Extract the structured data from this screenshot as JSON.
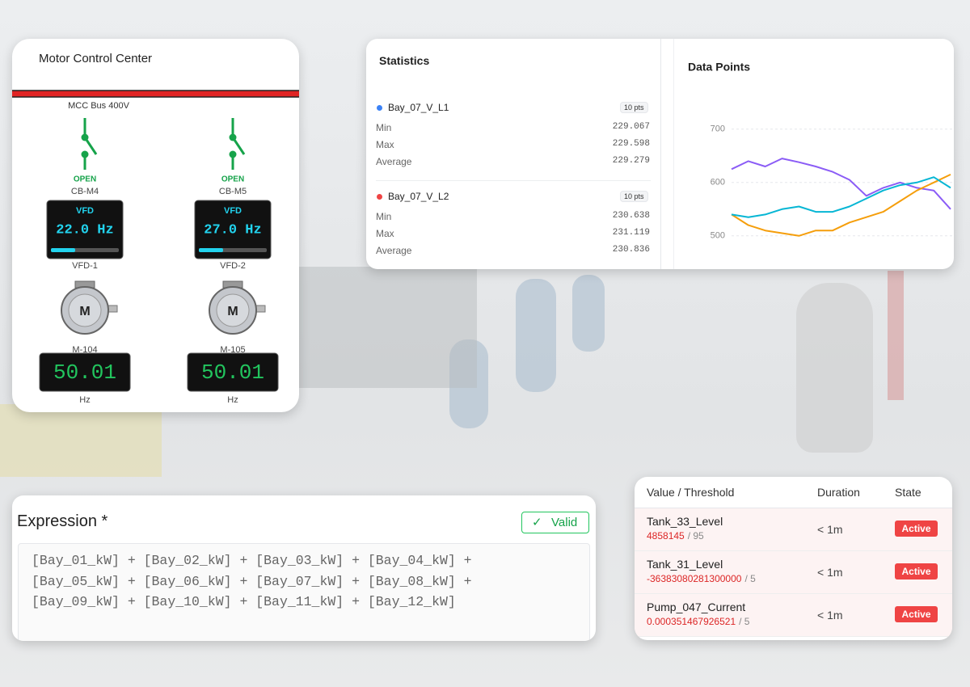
{
  "mcc": {
    "title": "Motor Control Center",
    "bus": "MCC Bus 400V",
    "feeders": [
      {
        "state": "OPEN",
        "breaker": "CB-M4",
        "vfd_label": "VFD",
        "vfd_frequency": "22.0 Hz",
        "vfd_name": "VFD-1",
        "motor_symbol": "M",
        "motor": "M-104",
        "reading": "50.01",
        "unit": "Hz"
      },
      {
        "state": "OPEN",
        "breaker": "CB-M5",
        "vfd_label": "VFD",
        "vfd_frequency": "27.0 Hz",
        "vfd_name": "VFD-2",
        "motor_symbol": "M",
        "motor": "M-105",
        "reading": "50.01",
        "unit": "Hz"
      }
    ]
  },
  "statistics": {
    "title": "Statistics",
    "series": [
      {
        "name": "Bay_07_V_L1",
        "color": "#3b82f6",
        "count": "10 pts",
        "rows": [
          {
            "label": "Min",
            "value": "229.067"
          },
          {
            "label": "Max",
            "value": "229.598"
          },
          {
            "label": "Average",
            "value": "229.279"
          }
        ]
      },
      {
        "name": "Bay_07_V_L2",
        "color": "#ef4444",
        "count": "10 pts",
        "rows": [
          {
            "label": "Min",
            "value": "230.638"
          },
          {
            "label": "Max",
            "value": "231.119"
          },
          {
            "label": "Average",
            "value": "230.836"
          }
        ]
      }
    ]
  },
  "data_points": {
    "type": "line",
    "title": "Data Points",
    "ylim": [
      480,
      730
    ],
    "yticks": [
      500,
      600,
      700
    ],
    "grid": true,
    "series": [
      {
        "color": "#8b5cf6",
        "values": [
          625,
          640,
          630,
          645,
          638,
          630,
          620,
          605,
          575,
          590,
          600,
          590,
          585,
          550
        ]
      },
      {
        "color": "#f59e0b",
        "values": [
          540,
          520,
          510,
          505,
          500,
          510,
          510,
          525,
          535,
          545,
          565,
          585,
          600,
          615
        ]
      },
      {
        "color": "#06b6d4",
        "values": [
          540,
          535,
          540,
          550,
          555,
          545,
          545,
          555,
          570,
          585,
          595,
          600,
          610,
          590
        ]
      }
    ]
  },
  "expression": {
    "label": "Expression *",
    "status": "Valid",
    "lines": [
      "[Bay_01_kW] + [Bay_02_kW] + [Bay_03_kW] + [Bay_04_kW] +",
      "[Bay_05_kW] + [Bay_06_kW] + [Bay_07_kW] + [Bay_08_kW] +",
      "[Bay_09_kW] + [Bay_10_kW] + [Bay_11_kW] + [Bay_12_kW]"
    ]
  },
  "alarms": {
    "columns": [
      "Value / Threshold",
      "Duration",
      "State"
    ],
    "rows": [
      {
        "name": "Tank_33_Level",
        "value": "4858145",
        "threshold": "/ 95",
        "duration": "< 1m",
        "state": "Active"
      },
      {
        "name": "Tank_31_Level",
        "value": "-36383080281300000",
        "threshold": "/ 5",
        "duration": "< 1m",
        "state": "Active"
      },
      {
        "name": "Pump_047_Current",
        "value": "0.000351467926521",
        "threshold": "/ 5",
        "duration": "< 1m",
        "state": "Active"
      }
    ]
  }
}
